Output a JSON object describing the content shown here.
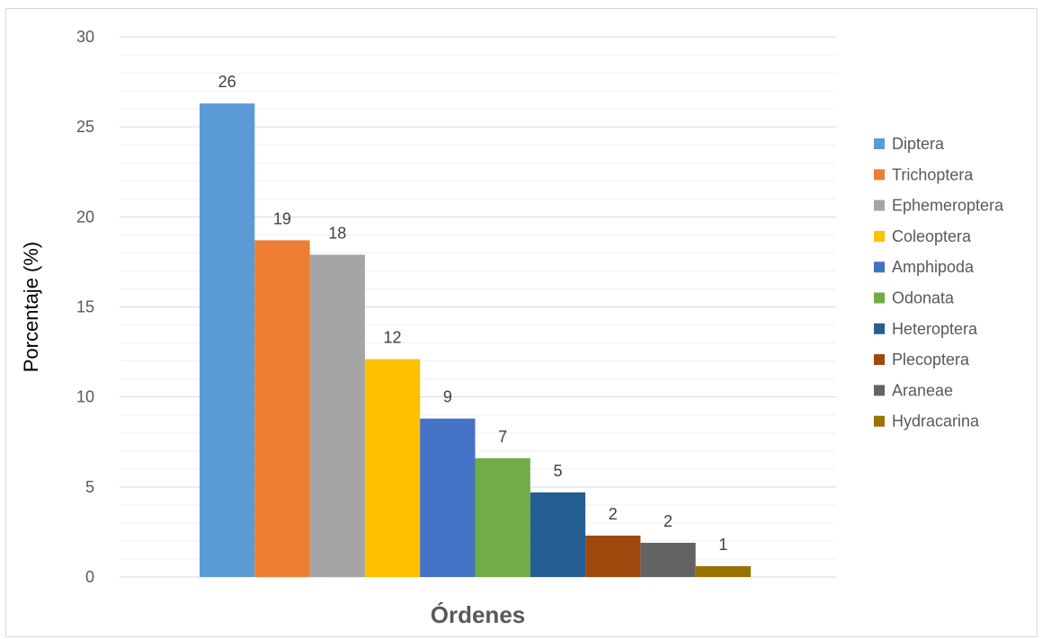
{
  "chart_data": {
    "type": "bar",
    "title": "",
    "xlabel": "Órdenes",
    "ylabel": "Porcentaje (%)",
    "ylim": [
      0,
      30
    ],
    "yticks": [
      0,
      5,
      10,
      15,
      20,
      25,
      30
    ],
    "grid": true,
    "legend_position": "right",
    "series": [
      {
        "name": "Diptera",
        "value": 26.3,
        "label": "26",
        "color": "#5B9BD5"
      },
      {
        "name": "Trichoptera",
        "value": 18.7,
        "label": "19",
        "color": "#ED7D31"
      },
      {
        "name": "Ephemeroptera",
        "value": 17.9,
        "label": "18",
        "color": "#A5A5A5"
      },
      {
        "name": "Coleoptera",
        "value": 12.1,
        "label": "12",
        "color": "#FFC000"
      },
      {
        "name": "Amphipoda",
        "value": 8.8,
        "label": "9",
        "color": "#4472C4"
      },
      {
        "name": "Odonata",
        "value": 6.6,
        "label": "7",
        "color": "#70AD47"
      },
      {
        "name": "Heteroptera",
        "value": 4.7,
        "label": "5",
        "color": "#255E91"
      },
      {
        "name": "Plecoptera",
        "value": 2.3,
        "label": "2",
        "color": "#9E480E"
      },
      {
        "name": "Araneae",
        "value": 1.9,
        "label": "2",
        "color": "#636363"
      },
      {
        "name": "Hydracarina",
        "value": 0.6,
        "label": "1",
        "color": "#997300"
      }
    ]
  }
}
